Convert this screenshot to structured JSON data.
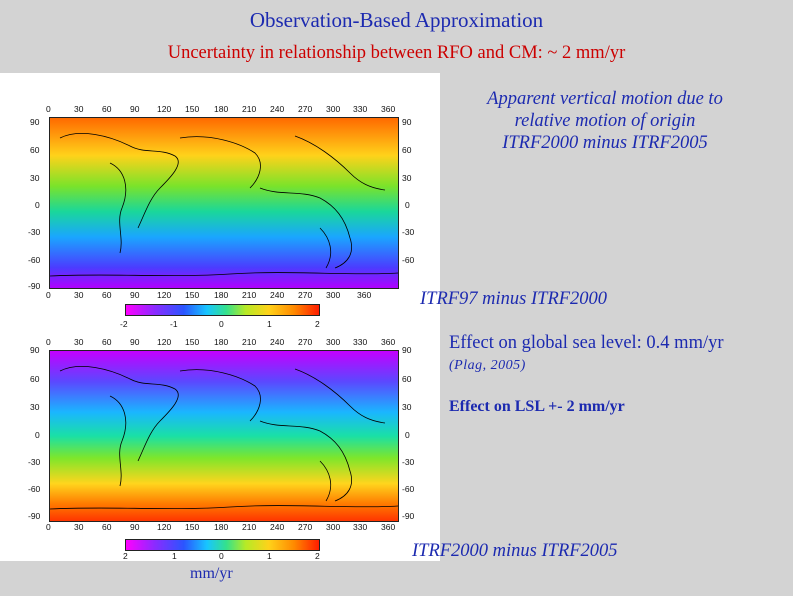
{
  "slide": {
    "title": "Observation-Based Approximation",
    "subtitle": "Uncertainty in relationship between RFO and CM: ~ 2 mm/yr",
    "annotations": {
      "apparent_motion": [
        "Apparent vertical motion due to",
        "relative motion of origin",
        "ITRF2000 minus ITRF2005"
      ],
      "itrf97_label": "ITRF97 minus ITRF2000",
      "sea_level_effect": "Effect on global sea level: 0.4 mm/yr",
      "citation": "(Plag, 2005)",
      "lsl_effect": "Effect on LSL +- 2 mm/yr",
      "bottom_label": "ITRF2000 minus ITRF2005",
      "units": "mm/yr"
    },
    "map_top": {
      "x_ticks": [
        "0",
        "30",
        "60",
        "90",
        "120",
        "150",
        "180",
        "210",
        "240",
        "270",
        "300",
        "330",
        "360"
      ],
      "y_ticks": [
        "90",
        "60",
        "30",
        "0",
        "-30",
        "-60",
        "-90"
      ],
      "colorbar_ticks": [
        "-2",
        "-1",
        "0",
        "1",
        "2"
      ]
    },
    "map_bottom": {
      "x_ticks": [
        "0",
        "30",
        "60",
        "90",
        "120",
        "150",
        "180",
        "210",
        "240",
        "270",
        "300",
        "330",
        "360"
      ],
      "y_ticks": [
        "90",
        "60",
        "30",
        "0",
        "-30",
        "-60",
        "-90"
      ],
      "colorbar_ticks": [
        "2",
        "1",
        "0",
        "1",
        "2"
      ]
    }
  }
}
